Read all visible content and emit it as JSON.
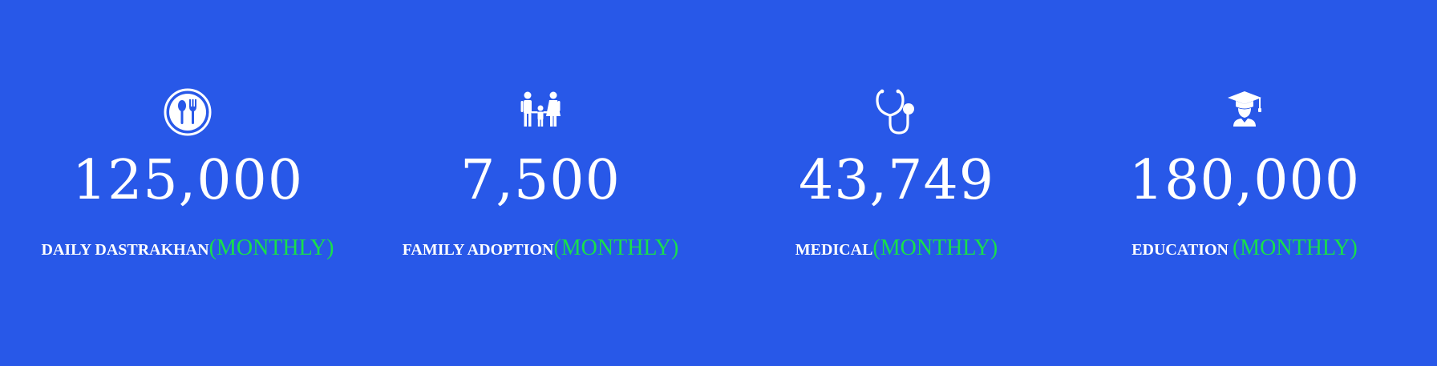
{
  "colors": {
    "background": "#2858e8",
    "text": "#ffffff",
    "accent": "#19e04a"
  },
  "stats": [
    {
      "icon": "food-plate-icon",
      "value": "125,000",
      "label": "DAILY DASTRAKHAN",
      "period": "(MONTHLY)"
    },
    {
      "icon": "family-icon",
      "value": "7,500",
      "label": "FAMILY ADOPTION",
      "period": "(MONTHLY)"
    },
    {
      "icon": "stethoscope-icon",
      "value": "43,749",
      "label": "MEDICAL",
      "period": "(MONTHLY)"
    },
    {
      "icon": "graduate-icon",
      "value": "180,000",
      "label": "EDUCATION ",
      "period": "(MONTHLY)"
    }
  ]
}
